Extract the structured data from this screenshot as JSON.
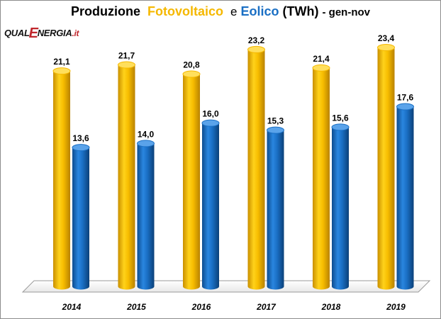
{
  "title": {
    "part1": "Produzione",
    "part2": "Fotovoltaico",
    "part3": "e",
    "part4": "Eolico",
    "part5": "(TWh)",
    "part6": "- gen-nov"
  },
  "logo": {
    "part1": "QUAL",
    "part2": "E",
    "part3": "NERGIA",
    "part4": ".it"
  },
  "colors": {
    "fotovoltaico": "#f5b800",
    "eolico": "#1a6fc4"
  },
  "chart_data": {
    "type": "bar",
    "title": "Produzione Fotovoltaico e Eolico (TWh) - gen-nov",
    "categories": [
      "2014",
      "2015",
      "2016",
      "2017",
      "2018",
      "2019"
    ],
    "series": [
      {
        "name": "Fotovoltaico",
        "values": [
          21.1,
          21.7,
          20.8,
          23.2,
          21.4,
          23.4
        ],
        "labels": [
          "21,1",
          "21,7",
          "20,8",
          "23,2",
          "21,4",
          "23,4"
        ]
      },
      {
        "name": "Eolico",
        "values": [
          13.6,
          14.0,
          16.0,
          15.3,
          15.6,
          17.6
        ],
        "labels": [
          "13,6",
          "14,0",
          "16,0",
          "15,3",
          "15,6",
          "17,6"
        ]
      }
    ],
    "ylim": [
      0,
      25
    ],
    "grid": false,
    "legend": "none"
  }
}
